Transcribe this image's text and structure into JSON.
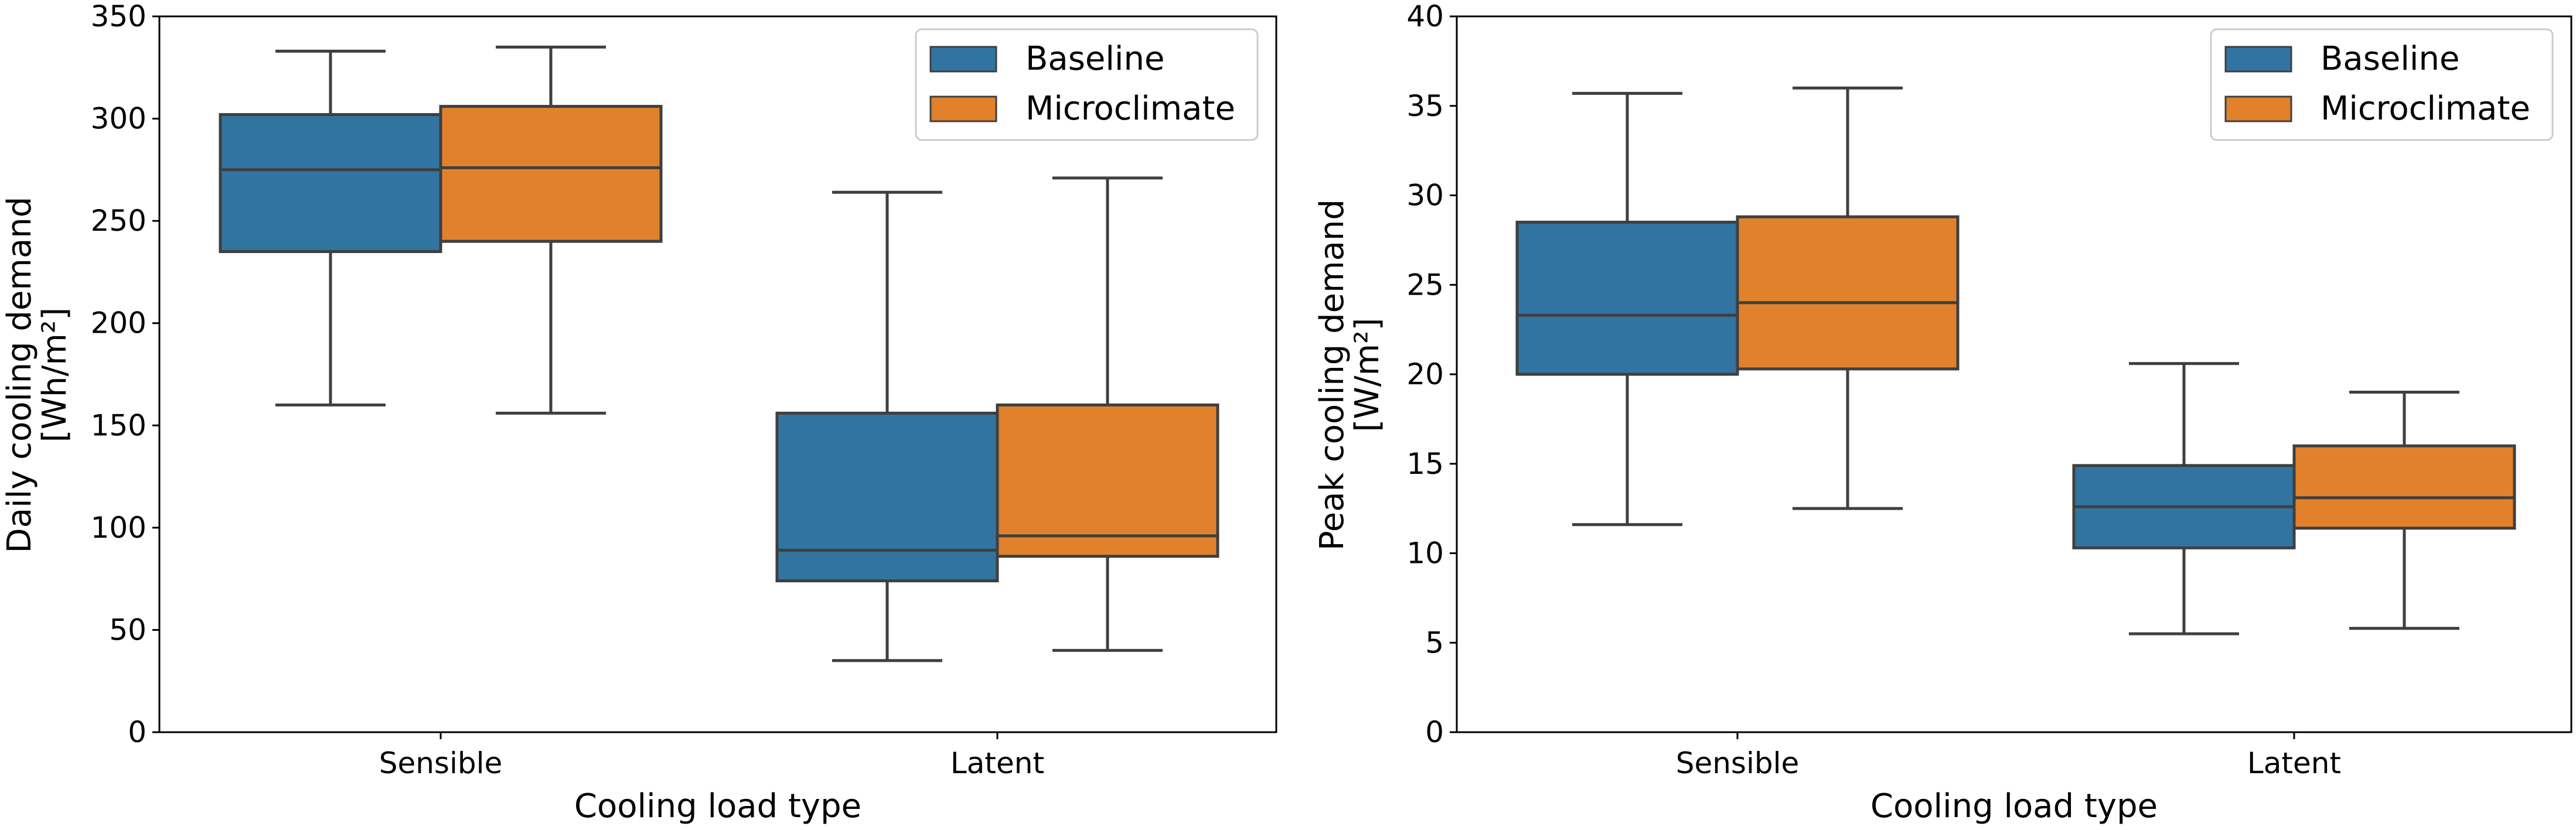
{
  "colors": {
    "baseline": "#3274a1",
    "microclimate": "#e1812c",
    "stroke": "#3f3f3f"
  },
  "chart_data": [
    {
      "type": "box",
      "xlabel": "Cooling load type",
      "ylabel": "Daily cooling demand",
      "ylabel_line2": "[Wh/m²]",
      "ylim": [
        0,
        350
      ],
      "yticks": [
        0,
        50,
        100,
        150,
        200,
        250,
        300,
        350
      ],
      "categories": [
        "Sensible",
        "Latent"
      ],
      "legend": [
        "Baseline",
        "Microclimate"
      ],
      "legend_position": "top-right",
      "series": [
        {
          "name": "Baseline",
          "color": "#3274a1",
          "boxes": [
            {
              "min": 160,
              "q1": 235,
              "median": 275,
              "q3": 302,
              "max": 333
            },
            {
              "min": 35,
              "q1": 74,
              "median": 89,
              "q3": 156,
              "max": 264
            }
          ]
        },
        {
          "name": "Microclimate",
          "color": "#e1812c",
          "boxes": [
            {
              "min": 156,
              "q1": 240,
              "median": 276,
              "q3": 306,
              "max": 335
            },
            {
              "min": 40,
              "q1": 86,
              "median": 96,
              "q3": 160,
              "max": 271
            }
          ]
        }
      ]
    },
    {
      "type": "box",
      "xlabel": "Cooling load type",
      "ylabel": "Peak cooling demand",
      "ylabel_line2": "[W/m²]",
      "ylim": [
        0,
        40
      ],
      "yticks": [
        0,
        5,
        10,
        15,
        20,
        25,
        30,
        35,
        40
      ],
      "categories": [
        "Sensible",
        "Latent"
      ],
      "legend": [
        "Baseline",
        "Microclimate"
      ],
      "legend_position": "top-right",
      "series": [
        {
          "name": "Baseline",
          "color": "#3274a1",
          "boxes": [
            {
              "min": 11.6,
              "q1": 20.0,
              "median": 23.3,
              "q3": 28.5,
              "max": 35.7
            },
            {
              "min": 5.5,
              "q1": 10.3,
              "median": 12.6,
              "q3": 14.9,
              "max": 20.6
            }
          ]
        },
        {
          "name": "Microclimate",
          "color": "#e1812c",
          "boxes": [
            {
              "min": 12.5,
              "q1": 20.3,
              "median": 24.0,
              "q3": 28.8,
              "max": 36.0
            },
            {
              "min": 5.8,
              "q1": 11.4,
              "median": 13.1,
              "q3": 16.0,
              "max": 19.0
            }
          ]
        }
      ]
    }
  ]
}
